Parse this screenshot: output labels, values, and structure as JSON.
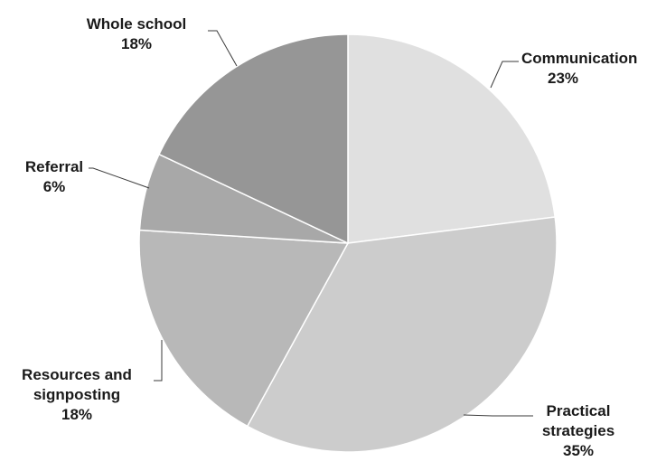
{
  "chart_data": {
    "type": "pie",
    "title": "",
    "start_angle_deg": 0,
    "direction": "clockwise",
    "slices": [
      {
        "name": "Communication",
        "value": 23,
        "label": "23%",
        "color": "#e0e0e0",
        "name_lines": [
          "Communication"
        ]
      },
      {
        "name": "Practical strategies",
        "value": 35,
        "label": "35%",
        "color": "#cccccc",
        "name_lines": [
          "Practical",
          "strategies"
        ]
      },
      {
        "name": "Resources and signposting",
        "value": 18,
        "label": "18%",
        "color": "#b8b8b8",
        "name_lines": [
          "Resources and",
          "signposting"
        ]
      },
      {
        "name": "Referral",
        "value": 6,
        "label": "6%",
        "color": "#a8a8a8",
        "name_lines": [
          "Referral"
        ]
      },
      {
        "name": "Whole school",
        "value": 18,
        "label": "18%",
        "color": "#969696",
        "name_lines": [
          "Whole school"
        ]
      }
    ],
    "legend": "none",
    "data_labels": "outside-with-leader-lines"
  }
}
